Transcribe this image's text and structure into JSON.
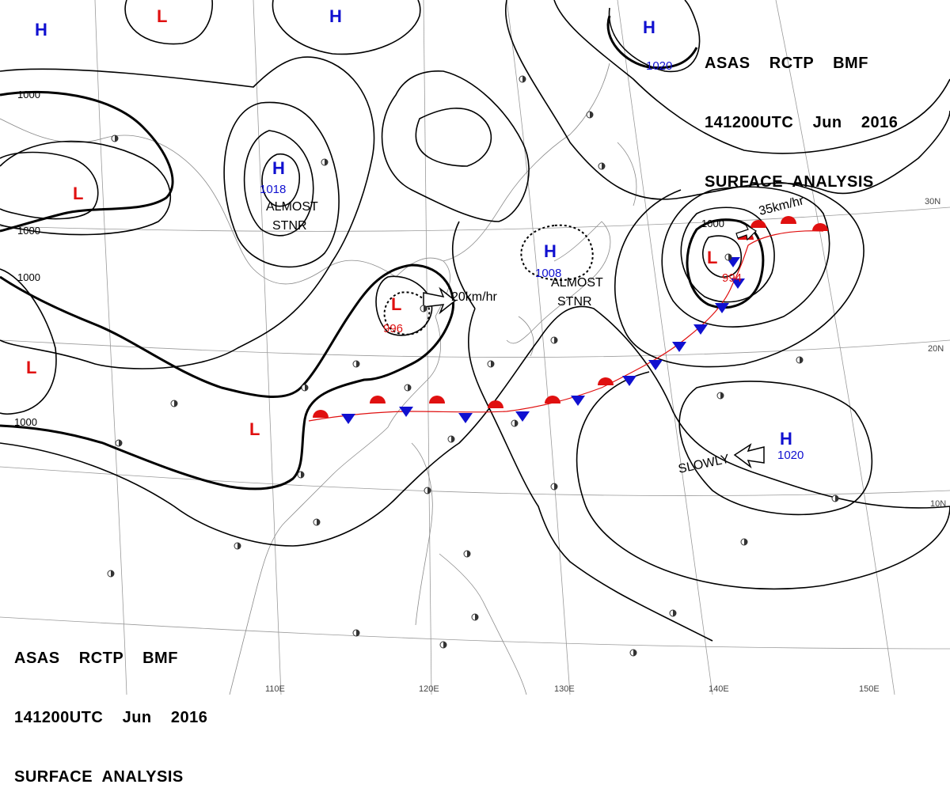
{
  "header_top": {
    "line1": "ASAS    RCTP    BMF",
    "line2": "141200UTC    Jun    2016",
    "line3": "SURFACE  ANALYSIS"
  },
  "header_bottom": {
    "line1": "ASAS    RCTP    BMF",
    "line2": "141200UTC    Jun    2016",
    "line3": "SURFACE  ANALYSIS"
  },
  "pressure_centers": [
    {
      "type": "H",
      "color": "#1010d0"
    },
    {
      "type": "L",
      "color": "#e01010"
    },
    {
      "type": "H",
      "color": "#1010d0"
    },
    {
      "type": "H",
      "color": "#1010d0",
      "value": "1020"
    },
    {
      "type": "L",
      "color": "#e01010"
    },
    {
      "type": "H",
      "color": "#1010d0",
      "value": "1018"
    },
    {
      "type": "H",
      "color": "#1010d0",
      "value": "1008"
    },
    {
      "type": "L",
      "color": "#e01010",
      "value": "996"
    },
    {
      "type": "L",
      "color": "#e01010",
      "value": "994"
    },
    {
      "type": "L",
      "color": "#e01010"
    },
    {
      "type": "L",
      "color": "#e01010"
    },
    {
      "type": "H",
      "color": "#1010d0",
      "value": "1020"
    }
  ],
  "isobar_labels": [
    "1000",
    "1000",
    "1000",
    "1000",
    "1020",
    "1000"
  ],
  "motion_labels": {
    "low_996": "20km/hr",
    "low_994": "35km/hr",
    "high_1020_south": "SLOWLY"
  },
  "stationary_labels": [
    "ALMOST\nSTNR",
    "ALMOST\nSTNR"
  ],
  "latitude_labels": [
    "30N",
    "20N",
    "10N"
  ],
  "longitude_labels": [
    "110E",
    "120E",
    "130E",
    "140E",
    "150E"
  ],
  "colors": {
    "high": "#1010d0",
    "low": "#e01010",
    "front_warm": "#e01010",
    "front_cold": "#1010d0"
  },
  "front_type": "stationary front"
}
